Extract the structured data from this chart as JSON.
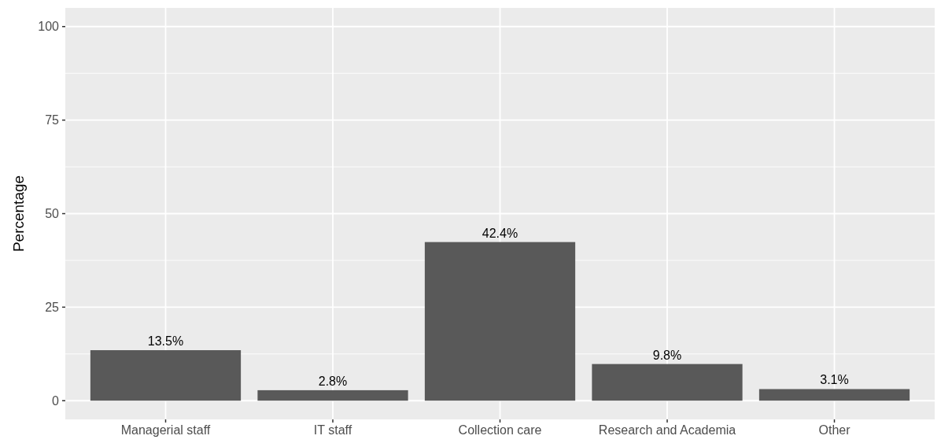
{
  "chart_data": {
    "type": "bar",
    "ylabel": "Percentage",
    "categories": [
      "Managerial staff",
      "IT staff",
      "Collection care",
      "Research and Academia",
      "Other"
    ],
    "values": [
      13.5,
      2.8,
      42.4,
      9.8,
      3.1
    ],
    "value_labels": [
      "13.5%",
      "2.8%",
      "42.4%",
      "9.8%",
      "3.1%"
    ],
    "color": "#595959",
    "ylim": [
      -5,
      105
    ],
    "yticks": [
      0,
      25,
      50,
      75,
      100
    ],
    "grid": true
  }
}
